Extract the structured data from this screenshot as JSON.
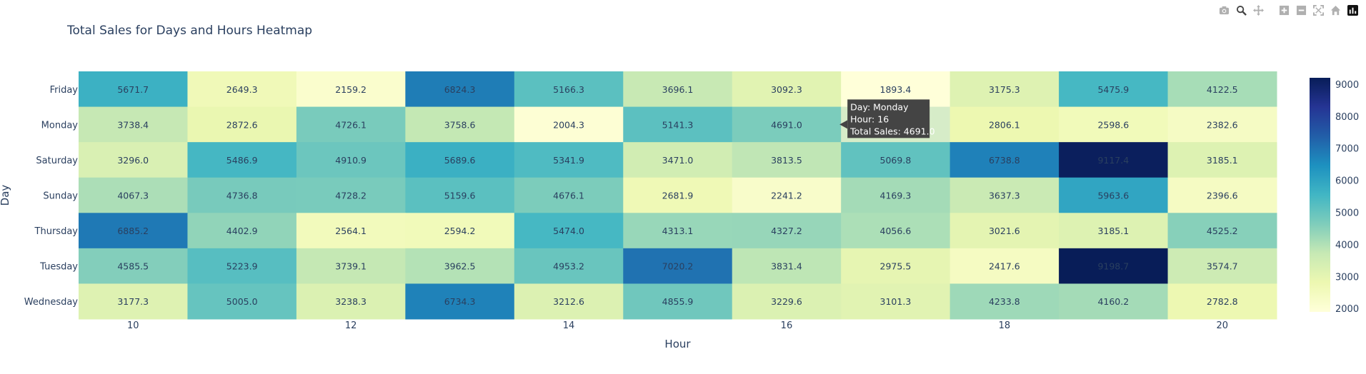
{
  "modebar": {
    "buttons": [
      "camera-icon",
      "zoom-icon",
      "pan-icon",
      "zoom-in-icon",
      "zoom-out-icon",
      "autoscale-icon",
      "reset-axes-icon",
      "plotly-logo-icon"
    ]
  },
  "colors": {
    "text": "#2a3f5f",
    "scale": [
      "#ffffd9",
      "#edf8b1",
      "#c7e9b4",
      "#7fcdbb",
      "#41b6c4",
      "#1d91c0",
      "#225ea8",
      "#253494",
      "#081d58"
    ],
    "tooltip_bg": "#444444"
  },
  "tooltip": {
    "lines": [
      "Day: Monday",
      "Hour: 16",
      "Total Sales: 4691.0"
    ],
    "target_day": "Monday",
    "target_hour": 16
  },
  "chart_data": {
    "type": "heatmap",
    "title": "Total Sales for Days and Hours Heatmap",
    "xlabel": "Hour",
    "ylabel": "Day",
    "x": [
      10,
      11,
      12,
      13,
      14,
      15,
      16,
      17,
      18,
      19,
      20
    ],
    "x_tick_labels": [
      "10",
      "12",
      "14",
      "16",
      "18",
      "20"
    ],
    "x_tick_values": [
      10,
      12,
      14,
      16,
      18,
      20
    ],
    "y": [
      "Friday",
      "Monday",
      "Saturday",
      "Sunday",
      "Thursday",
      "Tuesday",
      "Wednesday"
    ],
    "z": [
      [
        5671.7,
        2649.3,
        2159.2,
        6824.3,
        5166.3,
        3696.1,
        3092.3,
        1893.4,
        3175.3,
        5475.9,
        4122.5
      ],
      [
        3738.4,
        2872.6,
        4726.1,
        3758.6,
        2004.3,
        5141.3,
        4691.0,
        null,
        2806.1,
        2598.6,
        2382.6
      ],
      [
        3296.0,
        5486.9,
        4910.9,
        5689.6,
        5341.9,
        3471.0,
        3813.5,
        5069.8,
        6738.8,
        9117.4,
        3185.1
      ],
      [
        4067.3,
        4736.8,
        4728.2,
        5159.6,
        4676.1,
        2681.9,
        2241.2,
        4169.3,
        3637.3,
        5963.6,
        2396.6
      ],
      [
        6885.2,
        4402.9,
        2564.1,
        2594.2,
        5474.0,
        4313.1,
        4327.2,
        4056.6,
        3021.6,
        3185.1,
        4525.2
      ],
      [
        4585.5,
        5223.9,
        3739.1,
        3962.5,
        4953.2,
        7020.2,
        3831.4,
        2975.5,
        2417.6,
        9198.7,
        3574.7
      ],
      [
        3177.3,
        5005.0,
        3238.3,
        6734.3,
        3212.6,
        4855.9,
        3229.6,
        3101.3,
        4233.8,
        4160.2,
        2782.8
      ]
    ],
    "colorscale_range": [
      1893.4,
      9198.7
    ],
    "colorbar_ticks": [
      2000,
      3000,
      4000,
      5000,
      6000,
      7000,
      8000,
      9000
    ]
  }
}
